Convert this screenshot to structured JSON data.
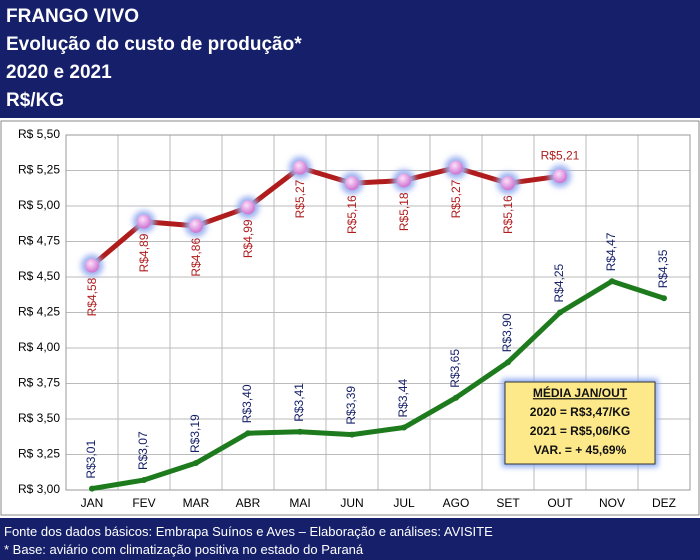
{
  "header": {
    "lines": [
      "FRANGO VIVO",
      "Evolução do custo de produção*",
      "2020 e 2021",
      "R$/KG"
    ]
  },
  "chart_data": {
    "type": "line",
    "categories": [
      "JAN",
      "FEV",
      "MAR",
      "ABR",
      "MAI",
      "JUN",
      "JUL",
      "AGO",
      "SET",
      "OUT",
      "NOV",
      "DEZ"
    ],
    "series": [
      {
        "color": "#b01c1c",
        "values": [
          4.58,
          4.89,
          4.86,
          4.99,
          5.27,
          5.16,
          5.18,
          5.27,
          5.16,
          5.21,
          null,
          null
        ],
        "value_labels": [
          "R$4,58",
          "R$4,89",
          "R$4,86",
          "R$4,99",
          "R$5,27",
          "R$5,16",
          "R$5,18",
          "R$5,27",
          "R$5,16",
          "R$5,21",
          null,
          null
        ]
      },
      {
        "color": "#1d7a1d",
        "values": [
          3.01,
          3.07,
          3.19,
          3.4,
          3.41,
          3.39,
          3.44,
          3.65,
          3.9,
          4.25,
          4.47,
          4.35
        ],
        "value_labels": [
          "R$3,01",
          "R$3,07",
          "R$3,19",
          "R$3,40",
          "R$3,41",
          "R$3,39",
          "R$3,44",
          "R$3,65",
          "R$3,90",
          "R$4,25",
          "R$4,47",
          "R$4,35"
        ]
      }
    ],
    "ylim": [
      3.0,
      5.5
    ],
    "yticks": [
      {
        "value": 3.0,
        "label": "R$ 3,00"
      },
      {
        "value": 3.25,
        "label": "R$ 3,25"
      },
      {
        "value": 3.5,
        "label": "R$ 3,50"
      },
      {
        "value": 3.75,
        "label": "R$ 3,75"
      },
      {
        "value": 4.0,
        "label": "R$ 4,00"
      },
      {
        "value": 4.25,
        "label": "R$ 4,25"
      },
      {
        "value": 4.5,
        "label": "R$ 4,50"
      },
      {
        "value": 4.75,
        "label": "R$ 4,75"
      },
      {
        "value": 5.0,
        "label": "R$ 5,00"
      },
      {
        "value": 5.25,
        "label": "R$ 5,25"
      },
      {
        "value": 5.5,
        "label": "R$ 5,50"
      }
    ],
    "grid": true,
    "annotation": [
      "MÉDIA JAN/OUT",
      "2020 = R$3,47/KG",
      "2021 = R$5,06/KG",
      "VAR. =  +  45,69%"
    ]
  },
  "footer": {
    "lines": [
      "Fonte dos dados básicos: Embrapa Suínos e Aves – Elaboração e análises: AVISITE",
      "* Base: aviário com climatização positiva no estado do Paraná"
    ]
  }
}
